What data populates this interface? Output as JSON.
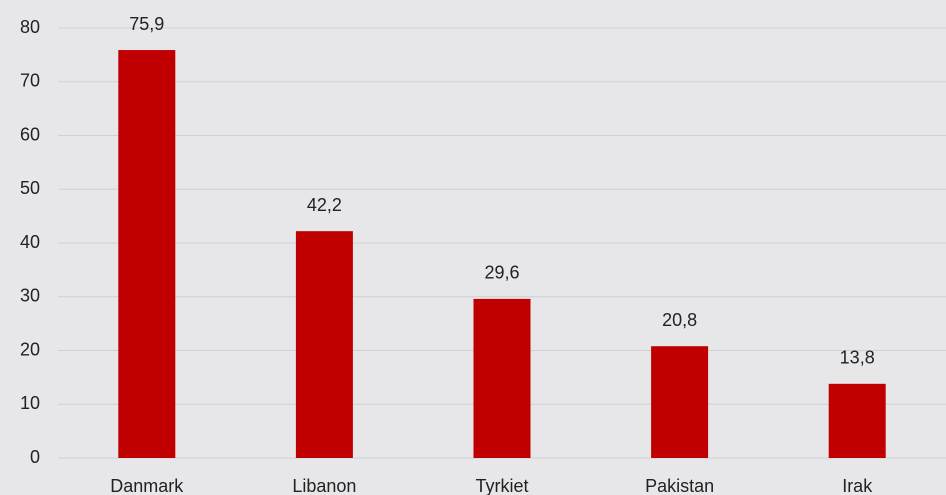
{
  "chart_data": {
    "type": "bar",
    "categories": [
      "Danmark",
      "Libanon",
      "Tyrkiet",
      "Pakistan",
      "Irak"
    ],
    "values": [
      75.9,
      42.2,
      29.6,
      20.8,
      13.8
    ],
    "value_labels": [
      "75,9",
      "42,2",
      "29,6",
      "20,8",
      "13,8"
    ],
    "color": "#c00000",
    "ylim": [
      0,
      80
    ],
    "yticks": [
      0,
      10,
      20,
      30,
      40,
      50,
      60,
      70,
      80
    ],
    "grid": true
  }
}
